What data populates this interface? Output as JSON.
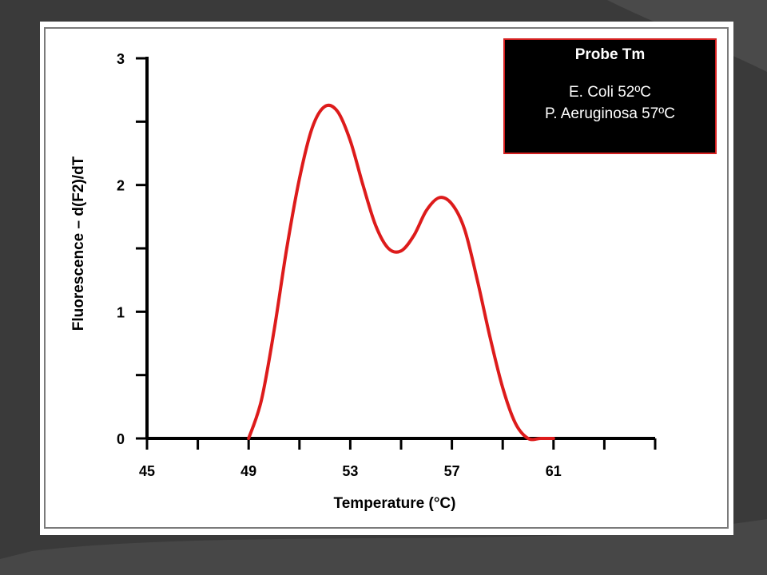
{
  "colors": {
    "background": "#3a3a3a",
    "panel": "#ffffff",
    "curve": "#dd1b1b",
    "legend_bg": "#000000",
    "legend_border": "#d42020"
  },
  "legend": {
    "title": "Probe Tm",
    "entries": [
      "E. Coli 52ºC",
      "P. Aeruginosa 57ºC"
    ]
  },
  "chart_data": {
    "type": "line",
    "title": "",
    "xlabel": "Temperature (°C)",
    "ylabel": "Fluorescence – d(F2)/dT",
    "xlim": [
      45,
      65
    ],
    "ylim": [
      0,
      3
    ],
    "x_ticks": [
      45,
      49,
      53,
      57,
      61
    ],
    "y_ticks": [
      0,
      1,
      2,
      3
    ],
    "x_minor_ticks": [
      47,
      51,
      55,
      59,
      63,
      65
    ],
    "y_minor_ticks": [
      0.5,
      1.5,
      2.5
    ],
    "grid": false,
    "series": [
      {
        "color": "#dd1b1b",
        "x": [
          49.0,
          49.5,
          50.0,
          50.5,
          51.0,
          51.5,
          52.0,
          52.5,
          53.0,
          53.5,
          54.0,
          54.5,
          55.0,
          55.5,
          56.0,
          56.5,
          57.0,
          57.5,
          58.0,
          58.5,
          59.0,
          59.5,
          60.0,
          60.5,
          61.0
        ],
        "y": [
          0.0,
          0.3,
          0.85,
          1.5,
          2.05,
          2.45,
          2.62,
          2.58,
          2.35,
          2.0,
          1.68,
          1.5,
          1.48,
          1.6,
          1.8,
          1.9,
          1.85,
          1.65,
          1.25,
          0.8,
          0.4,
          0.12,
          0.0,
          0.0,
          0.0
        ]
      }
    ]
  }
}
